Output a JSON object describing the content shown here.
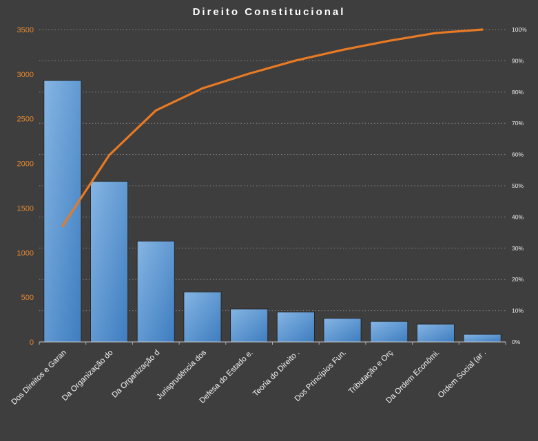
{
  "chart_data": {
    "type": "pareto",
    "title": "Direito Constitucional",
    "categories": [
      "Dos Direitos e Garan",
      "Da Organização do",
      "Da Organização d",
      "Jurisprudência dos",
      "Defesa do Estado e.",
      "Teoria do Direito .",
      "Dos Princípios Fun.",
      "Tributação e Orç",
      "Da Ordem Econômi.",
      "Ordem Social (ar ."
    ],
    "bar_values": [
      2930,
      1800,
      1130,
      560,
      370,
      335,
      265,
      230,
      200,
      85
    ],
    "cumulative_pct": [
      37.1,
      59.8,
      74.1,
      81.2,
      85.9,
      90.1,
      93.5,
      96.4,
      98.9,
      100
    ],
    "left_axis": {
      "min": 0,
      "max": 3500,
      "step": 500
    },
    "right_axis": {
      "min": 0,
      "max": 100,
      "step": 10,
      "suffix": "%"
    },
    "grid": "dotted horizontal lines at 10% intervals",
    "legend": "none",
    "colors": {
      "background": "#3e3e3e",
      "bar_fill_light": "#85b5e3",
      "bar_fill_dark": "#3e7dc0",
      "bar_border": "#262626",
      "line": "#e87a24",
      "left_axis_labels": "#ea8a2e",
      "right_axis_labels": "#ededed",
      "category_labels": "#f5f5f5",
      "gridline": "#a6a6a6",
      "axis_line": "#c9c9c9",
      "title": "#ffffff"
    }
  }
}
